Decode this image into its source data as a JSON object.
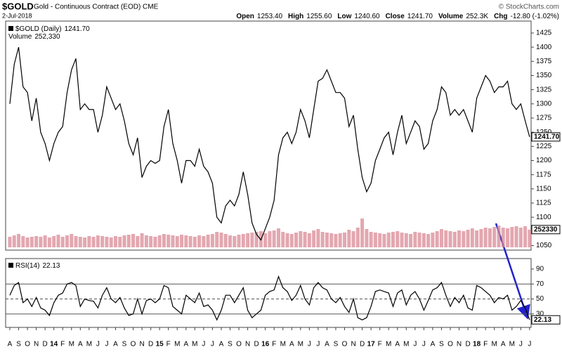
{
  "header": {
    "symbol": "$GOLD",
    "subtitle": "Gold - Continuous Contract (EOD) CME",
    "date": "2-Jul-2018",
    "credit": "© StockCharts.com",
    "quote": [
      [
        "Open",
        "1253.40"
      ],
      [
        "High",
        "1255.60"
      ],
      [
        "Low",
        "1240.60"
      ],
      [
        "Close",
        "1241.70"
      ],
      [
        "Volume",
        "252.3K"
      ],
      [
        "Chg",
        "-12.80 (-1.02%)"
      ]
    ]
  },
  "chart_data": [
    {
      "type": "line",
      "categories": [
        "A",
        null,
        "S",
        null,
        "O",
        null,
        "N",
        null,
        "D",
        null,
        "14",
        null,
        "F",
        null,
        "M",
        null,
        "A",
        null,
        "M",
        null,
        "J",
        null,
        "J",
        null,
        "A",
        null,
        "S",
        null,
        "O",
        null,
        "N",
        null,
        "D",
        null,
        "15",
        null,
        "F",
        null,
        "M",
        null,
        "A",
        null,
        "M",
        null,
        "J",
        null,
        "J",
        null,
        "A",
        null,
        "S",
        null,
        "O",
        null,
        "N",
        null,
        "D",
        null,
        "16",
        null,
        "F",
        null,
        "M",
        null,
        "A",
        null,
        "M",
        null,
        "J",
        null,
        "J",
        null,
        "A",
        null,
        "S",
        null,
        "O",
        null,
        "N",
        null,
        "D",
        null,
        "17",
        null,
        "F",
        null,
        "M",
        null,
        "A",
        null,
        "M",
        null,
        "J",
        null,
        "J",
        null,
        "A",
        null,
        "S",
        null,
        "O",
        null,
        "N",
        null,
        "D",
        null,
        "18",
        null,
        "F",
        null,
        "M",
        null,
        "A",
        null,
        "M",
        null,
        "J",
        null,
        "J"
      ],
      "series": [
        {
          "name": "$GOLD (Daily)",
          "last_value_label": "1241.70",
          "color": "#000000",
          "values": [
            1300,
            1370,
            1400,
            1330,
            1320,
            1270,
            1310,
            1250,
            1230,
            1200,
            1230,
            1250,
            1260,
            1320,
            1360,
            1380,
            1290,
            1300,
            1290,
            1290,
            1250,
            1280,
            1330,
            1310,
            1290,
            1300,
            1270,
            1230,
            1210,
            1240,
            1170,
            1190,
            1200,
            1195,
            1200,
            1260,
            1290,
            1230,
            1200,
            1160,
            1200,
            1200,
            1190,
            1220,
            1190,
            1180,
            1160,
            1100,
            1090,
            1120,
            1130,
            1120,
            1140,
            1180,
            1140,
            1090,
            1070,
            1060,
            1080,
            1100,
            1130,
            1210,
            1240,
            1250,
            1230,
            1250,
            1290,
            1270,
            1240,
            1290,
            1340,
            1345,
            1360,
            1340,
            1320,
            1320,
            1310,
            1260,
            1280,
            1220,
            1170,
            1145,
            1160,
            1200,
            1220,
            1240,
            1250,
            1210,
            1250,
            1280,
            1230,
            1250,
            1270,
            1260,
            1220,
            1230,
            1270,
            1290,
            1330,
            1320,
            1280,
            1290,
            1280,
            1290,
            1270,
            1250,
            1310,
            1330,
            1350,
            1340,
            1320,
            1330,
            1330,
            1340,
            1300,
            1290,
            1300,
            1270,
            1241.7
          ]
        },
        {
          "name": "Volume",
          "legend_value_label": "252,330",
          "axis": "y2",
          "color": "#d98a96",
          "values": [
            150000,
            170000,
            190000,
            160000,
            140000,
            150000,
            160000,
            150000,
            170000,
            140000,
            160000,
            180000,
            150000,
            170000,
            190000,
            160000,
            150000,
            140000,
            160000,
            150000,
            170000,
            160000,
            150000,
            140000,
            160000,
            150000,
            170000,
            180000,
            190000,
            160000,
            200000,
            170000,
            160000,
            150000,
            170000,
            190000,
            180000,
            170000,
            160000,
            180000,
            170000,
            160000,
            150000,
            170000,
            160000,
            180000,
            190000,
            220000,
            210000,
            190000,
            170000,
            160000,
            180000,
            190000,
            200000,
            210000,
            220000,
            230000,
            200000,
            230000,
            240000,
            270000,
            220000,
            200000,
            190000,
            210000,
            230000,
            220000,
            200000,
            240000,
            260000,
            220000,
            210000,
            200000,
            190000,
            200000,
            210000,
            250000,
            230000,
            280000,
            410000,
            260000,
            220000,
            210000,
            200000,
            190000,
            210000,
            220000,
            230000,
            210000,
            200000,
            190000,
            220000,
            210000,
            200000,
            190000,
            210000,
            230000,
            260000,
            240000,
            230000,
            220000,
            240000,
            230000,
            250000,
            270000,
            240000,
            260000,
            280000,
            270000,
            290000,
            310000,
            280000,
            270000,
            290000,
            300000,
            280000,
            300000,
            252330
          ]
        }
      ],
      "ylim": [
        1042,
        1446
      ],
      "yticks": [
        1050,
        1075,
        1100,
        1125,
        1150,
        1175,
        1200,
        1225,
        1250,
        1275,
        1300,
        1325,
        1350,
        1375,
        1400,
        1425
      ],
      "y2lim": [
        0,
        1000000
      ]
    },
    {
      "type": "line",
      "series": [
        {
          "name": "RSI(14)",
          "color": "#000000",
          "values": [
            55,
            68,
            72,
            45,
            50,
            40,
            52,
            38,
            35,
            28,
            45,
            55,
            58,
            70,
            72,
            68,
            40,
            50,
            48,
            47,
            38,
            55,
            65,
            50,
            45,
            52,
            38,
            28,
            30,
            50,
            30,
            48,
            50,
            45,
            50,
            68,
            65,
            40,
            35,
            30,
            55,
            50,
            45,
            58,
            40,
            42,
            35,
            22,
            35,
            55,
            55,
            45,
            55,
            65,
            35,
            25,
            30,
            35,
            55,
            60,
            62,
            80,
            65,
            60,
            48,
            55,
            68,
            50,
            42,
            65,
            72,
            65,
            62,
            50,
            45,
            52,
            40,
            32,
            50,
            25,
            22,
            25,
            40,
            60,
            62,
            60,
            58,
            40,
            58,
            62,
            42,
            55,
            60,
            50,
            35,
            48,
            62,
            65,
            72,
            55,
            40,
            52,
            45,
            55,
            38,
            35,
            68,
            65,
            60,
            55,
            45,
            52,
            50,
            55,
            35,
            40,
            48,
            38,
            22.13
          ]
        }
      ],
      "ylim": [
        12,
        104
      ],
      "yticks": [
        10,
        30,
        50,
        70,
        90
      ],
      "hlines": [
        30,
        50,
        70
      ],
      "dashed_hline": 50
    }
  ]
}
